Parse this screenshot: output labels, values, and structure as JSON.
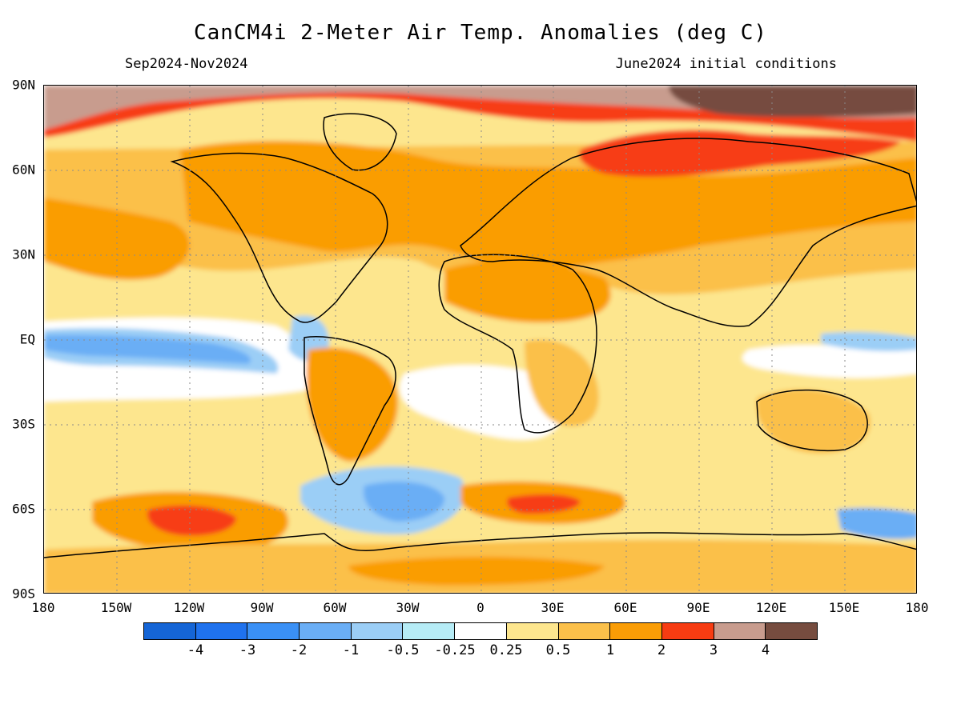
{
  "header": {
    "title": "CanCM4i 2-Meter Air Temp. Anomalies (deg C)",
    "period": "Sep2024-Nov2024",
    "init": "June2024 initial conditions"
  },
  "axes": {
    "lat_labels": [
      "90N",
      "60N",
      "30N",
      "EQ",
      "30S",
      "60S",
      "90S"
    ],
    "lon_labels": [
      "180",
      "150W",
      "120W",
      "90W",
      "60W",
      "30W",
      "0",
      "30E",
      "60E",
      "90E",
      "120E",
      "150E",
      "180"
    ]
  },
  "colorbar": {
    "colors": [
      "#1565d6",
      "#1f72ee",
      "#3a90f5",
      "#6aaef5",
      "#9bcef6",
      "#b6ecf6",
      "#ffffff",
      "#fde68e",
      "#fbc04a",
      "#fa9d06",
      "#f73c12",
      "#c89c8e",
      "#764c3f"
    ],
    "labels": [
      "-4",
      "-3",
      "-2",
      "-1",
      "-0.5",
      "-0.25",
      "0.25",
      "0.5",
      "1",
      "2",
      "3",
      "4"
    ]
  },
  "map_data": {
    "type": "filled-contour",
    "variable": "2-meter air temperature anomaly",
    "units": "deg C",
    "lon_range": [
      -180,
      180
    ],
    "lat_range": [
      -90,
      90
    ],
    "features": [
      {
        "region": "Arctic north of 75N, western hemisphere",
        "level": "3 to 4"
      },
      {
        "region": "Arctic north of 80N, eastern Siberia",
        "level": "above 4"
      },
      {
        "region": "Northern Siberia / Kara Sea",
        "level": "2 to 3"
      },
      {
        "region": "Canadian Arctic Archipelago",
        "level": "2 to 3"
      },
      {
        "region": "Northern Hemisphere midlatitude land",
        "level": "1 to 2"
      },
      {
        "region": "Equatorial central-eastern Pacific",
        "level": "-1 to -0.25"
      },
      {
        "region": "Southwest Atlantic off Argentina",
        "level": "-1 to -0.25"
      },
      {
        "region": "Southern Ocean near 60S, 120W",
        "level": "2 to 3"
      },
      {
        "region": "Southern Ocean near 60S, 20E",
        "level": "2 to 3"
      },
      {
        "region": "Northeast Africa / Arabia",
        "level": "2 to 3"
      },
      {
        "region": "Australia",
        "level": "0.5 to 1"
      },
      {
        "region": "Antarctica",
        "level": "0.5 to 2"
      }
    ]
  }
}
